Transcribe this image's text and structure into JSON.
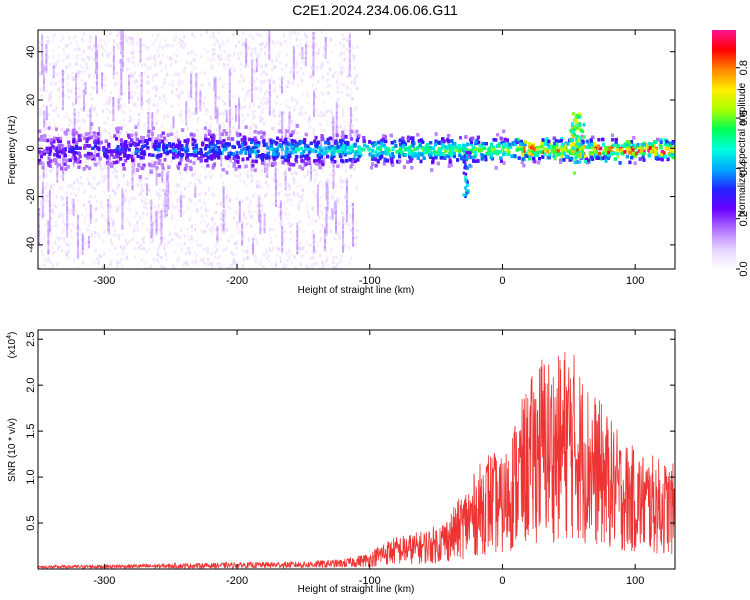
{
  "title": "C2E1.2024.234.06.06.G11",
  "colors": {
    "snr_line": "#ee3333",
    "colormap": [
      "#ffffff",
      "#e6d2ff",
      "#b070ff",
      "#6a00ff",
      "#2222ff",
      "#00aaff",
      "#00ffdd",
      "#00ff55",
      "#aaff00",
      "#ffee00",
      "#ff8800",
      "#ff0000",
      "#ff1493"
    ]
  },
  "chart_data": [
    {
      "type": "heatmap",
      "xlabel": "Height of straight line (km)",
      "ylabel": "Frequency (Hz)",
      "xlim": [
        -350,
        130
      ],
      "ylim": [
        -50,
        49
      ],
      "xticks": [
        -300,
        -200,
        -100,
        0,
        100
      ],
      "xtick_labels": [
        "-300",
        "-200",
        "-100",
        "0",
        "100"
      ],
      "yticks": [
        -40,
        -20,
        0,
        20,
        40
      ],
      "ytick_labels": [
        "-40",
        "-20",
        "0",
        "20",
        "40"
      ],
      "colorbar": {
        "label": "Normalized spectral amplitude",
        "range": [
          0,
          0.95
        ],
        "ticks": [
          0.0,
          0.2,
          0.4,
          0.6,
          0.8
        ],
        "tick_labels": [
          "0.0",
          "0.2",
          "0.4",
          "0.6",
          "0.8"
        ]
      },
      "features": {
        "central_band_frequency_hz": 0,
        "central_band_halfwidth_hz": [
          8,
          4
        ],
        "noise_region_xlim": [
          -350,
          -110
        ],
        "peak_x": 55,
        "peak_frequency_hz": 12,
        "spike_x": -28,
        "spike_frequency_hz": -20
      }
    },
    {
      "type": "line",
      "xlabel": "Height of straight line (km)",
      "ylabel": "SNR (10 * v/v)",
      "yscale_label": "(x10",
      "yscale_exp": "4",
      "xlim": [
        -350,
        130
      ],
      "ylim": [
        0,
        26000
      ],
      "xticks": [
        -300,
        -200,
        -100,
        0,
        100
      ],
      "xtick_labels": [
        "-300",
        "-200",
        "-100",
        "0",
        "100"
      ],
      "yticks": [
        5000,
        10000,
        15000,
        20000,
        25000
      ],
      "ytick_labels": [
        "0.5",
        "1.0",
        "1.5",
        "2.0",
        "2.5"
      ],
      "series": [
        {
          "x": [
            -350,
            -300,
            -250,
            -200,
            -150,
            -120,
            -100,
            -90,
            -80,
            -70,
            -60,
            -50,
            -40,
            -30,
            -20,
            -10,
            0,
            10,
            20,
            30,
            40,
            50,
            60,
            70,
            80,
            90,
            100,
            110,
            120,
            130
          ],
          "values": [
            300,
            400,
            500,
            600,
            700,
            900,
            1500,
            2500,
            3000,
            3200,
            3500,
            4000,
            5000,
            7000,
            9000,
            11000,
            10000,
            14000,
            17000,
            20000,
            19000,
            21000,
            18000,
            16000,
            14000,
            12000,
            11000,
            10500,
            10000,
            9500
          ]
        }
      ]
    }
  ]
}
